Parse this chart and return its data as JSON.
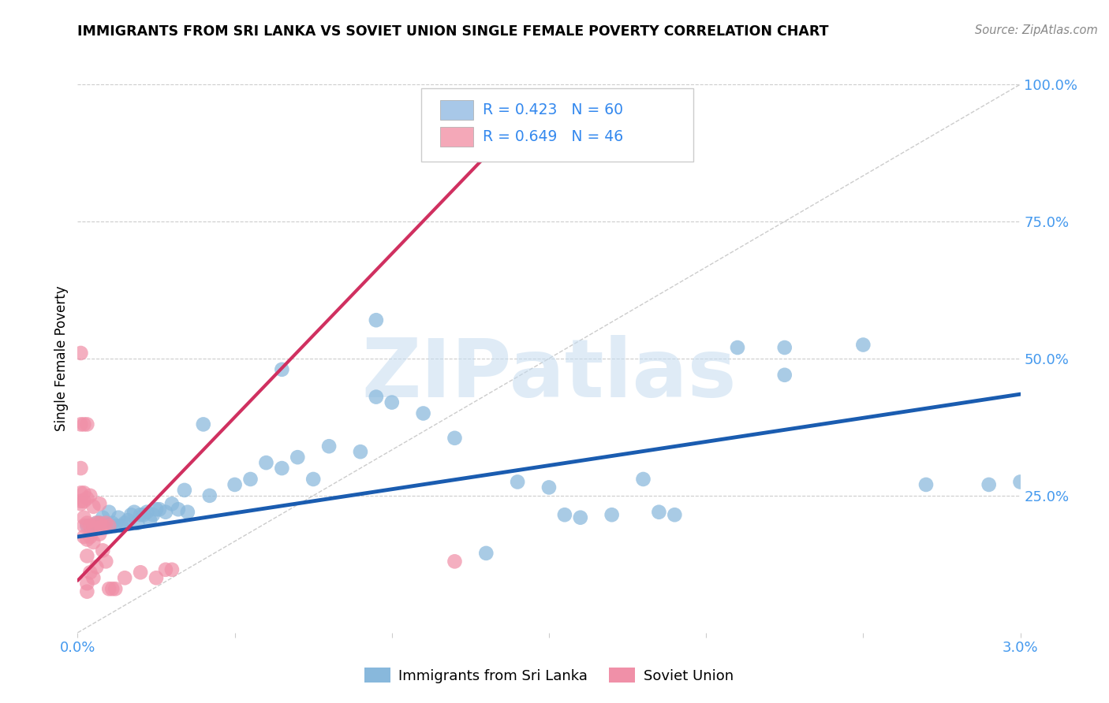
{
  "title": "IMMIGRANTS FROM SRI LANKA VS SOVIET UNION SINGLE FEMALE POVERTY CORRELATION CHART",
  "source": "Source: ZipAtlas.com",
  "ylabel": "Single Female Poverty",
  "ylabel_right_ticks": [
    "100.0%",
    "75.0%",
    "50.0%",
    "25.0%"
  ],
  "ylabel_right_vals": [
    1.0,
    0.75,
    0.5,
    0.25
  ],
  "legend_entries": [
    {
      "label": "R = 0.423   N = 60",
      "color": "#a8c8e8"
    },
    {
      "label": "R = 0.649   N = 46",
      "color": "#f4a8b8"
    }
  ],
  "legend_bottom": [
    "Immigrants from Sri Lanka",
    "Soviet Union"
  ],
  "sri_lanka_color": "#88b8dc",
  "soviet_color": "#f090a8",
  "sri_lanka_line_color": "#1a5cb0",
  "soviet_line_color": "#d03060",
  "watermark": "ZIPatlas",
  "xlim": [
    0.0,
    0.03
  ],
  "ylim": [
    0.0,
    1.0
  ],
  "sri_lanka_points": [
    [
      0.0003,
      0.195
    ],
    [
      0.0005,
      0.195
    ],
    [
      0.0006,
      0.2
    ],
    [
      0.0007,
      0.2
    ],
    [
      0.0008,
      0.21
    ],
    [
      0.0009,
      0.195
    ],
    [
      0.001,
      0.22
    ],
    [
      0.0011,
      0.2
    ],
    [
      0.0012,
      0.195
    ],
    [
      0.0013,
      0.21
    ],
    [
      0.0014,
      0.195
    ],
    [
      0.0015,
      0.2
    ],
    [
      0.0016,
      0.205
    ],
    [
      0.0017,
      0.215
    ],
    [
      0.0018,
      0.22
    ],
    [
      0.0019,
      0.2
    ],
    [
      0.002,
      0.215
    ],
    [
      0.0021,
      0.215
    ],
    [
      0.0022,
      0.22
    ],
    [
      0.0023,
      0.205
    ],
    [
      0.0024,
      0.215
    ],
    [
      0.0025,
      0.225
    ],
    [
      0.0026,
      0.225
    ],
    [
      0.0028,
      0.22
    ],
    [
      0.003,
      0.235
    ],
    [
      0.0032,
      0.225
    ],
    [
      0.0034,
      0.26
    ],
    [
      0.0035,
      0.22
    ],
    [
      0.004,
      0.38
    ],
    [
      0.0042,
      0.25
    ],
    [
      0.005,
      0.27
    ],
    [
      0.0055,
      0.28
    ],
    [
      0.006,
      0.31
    ],
    [
      0.0065,
      0.3
    ],
    [
      0.007,
      0.32
    ],
    [
      0.0075,
      0.28
    ],
    [
      0.008,
      0.34
    ],
    [
      0.009,
      0.33
    ],
    [
      0.0095,
      0.43
    ],
    [
      0.01,
      0.42
    ],
    [
      0.011,
      0.4
    ],
    [
      0.012,
      0.355
    ],
    [
      0.013,
      0.145
    ],
    [
      0.014,
      0.275
    ],
    [
      0.015,
      0.265
    ],
    [
      0.016,
      0.21
    ],
    [
      0.0155,
      0.215
    ],
    [
      0.017,
      0.215
    ],
    [
      0.018,
      0.28
    ],
    [
      0.0185,
      0.22
    ],
    [
      0.019,
      0.215
    ],
    [
      0.021,
      0.52
    ],
    [
      0.0225,
      0.47
    ],
    [
      0.0065,
      0.48
    ],
    [
      0.0095,
      0.57
    ],
    [
      0.0225,
      0.52
    ],
    [
      0.025,
      0.525
    ],
    [
      0.027,
      0.27
    ],
    [
      0.029,
      0.27
    ],
    [
      0.03,
      0.275
    ]
  ],
  "soviet_points": [
    [
      0.0001,
      0.51
    ],
    [
      0.0001,
      0.38
    ],
    [
      0.0001,
      0.3
    ],
    [
      0.0001,
      0.255
    ],
    [
      0.0001,
      0.24
    ],
    [
      0.0001,
      0.235
    ],
    [
      0.0002,
      0.38
    ],
    [
      0.0002,
      0.255
    ],
    [
      0.0002,
      0.24
    ],
    [
      0.0002,
      0.21
    ],
    [
      0.0002,
      0.195
    ],
    [
      0.0002,
      0.175
    ],
    [
      0.0003,
      0.38
    ],
    [
      0.0003,
      0.245
    ],
    [
      0.0003,
      0.2
    ],
    [
      0.0003,
      0.17
    ],
    [
      0.0003,
      0.14
    ],
    [
      0.0003,
      0.09
    ],
    [
      0.0004,
      0.25
    ],
    [
      0.0004,
      0.195
    ],
    [
      0.0004,
      0.175
    ],
    [
      0.0004,
      0.11
    ],
    [
      0.0005,
      0.23
    ],
    [
      0.0005,
      0.195
    ],
    [
      0.0005,
      0.165
    ],
    [
      0.0005,
      0.1
    ],
    [
      0.0006,
      0.2
    ],
    [
      0.0006,
      0.12
    ],
    [
      0.0007,
      0.235
    ],
    [
      0.0007,
      0.2
    ],
    [
      0.0007,
      0.18
    ],
    [
      0.0008,
      0.195
    ],
    [
      0.0008,
      0.15
    ],
    [
      0.0009,
      0.2
    ],
    [
      0.0009,
      0.13
    ],
    [
      0.001,
      0.195
    ],
    [
      0.001,
      0.08
    ],
    [
      0.0011,
      0.08
    ],
    [
      0.0012,
      0.08
    ],
    [
      0.0015,
      0.1
    ],
    [
      0.002,
      0.11
    ],
    [
      0.0025,
      0.1
    ],
    [
      0.0028,
      0.115
    ],
    [
      0.003,
      0.115
    ],
    [
      0.012,
      0.13
    ],
    [
      0.0003,
      0.075
    ]
  ],
  "sri_lanka_trendline": {
    "x": [
      0.0,
      0.03
    ],
    "y": [
      0.175,
      0.435
    ]
  },
  "soviet_trendline": {
    "x": [
      0.0,
      0.013
    ],
    "y": [
      0.095,
      0.87
    ]
  },
  "diagonal_line": {
    "x": [
      0.0,
      0.03
    ],
    "y": [
      0.0,
      1.0
    ]
  }
}
